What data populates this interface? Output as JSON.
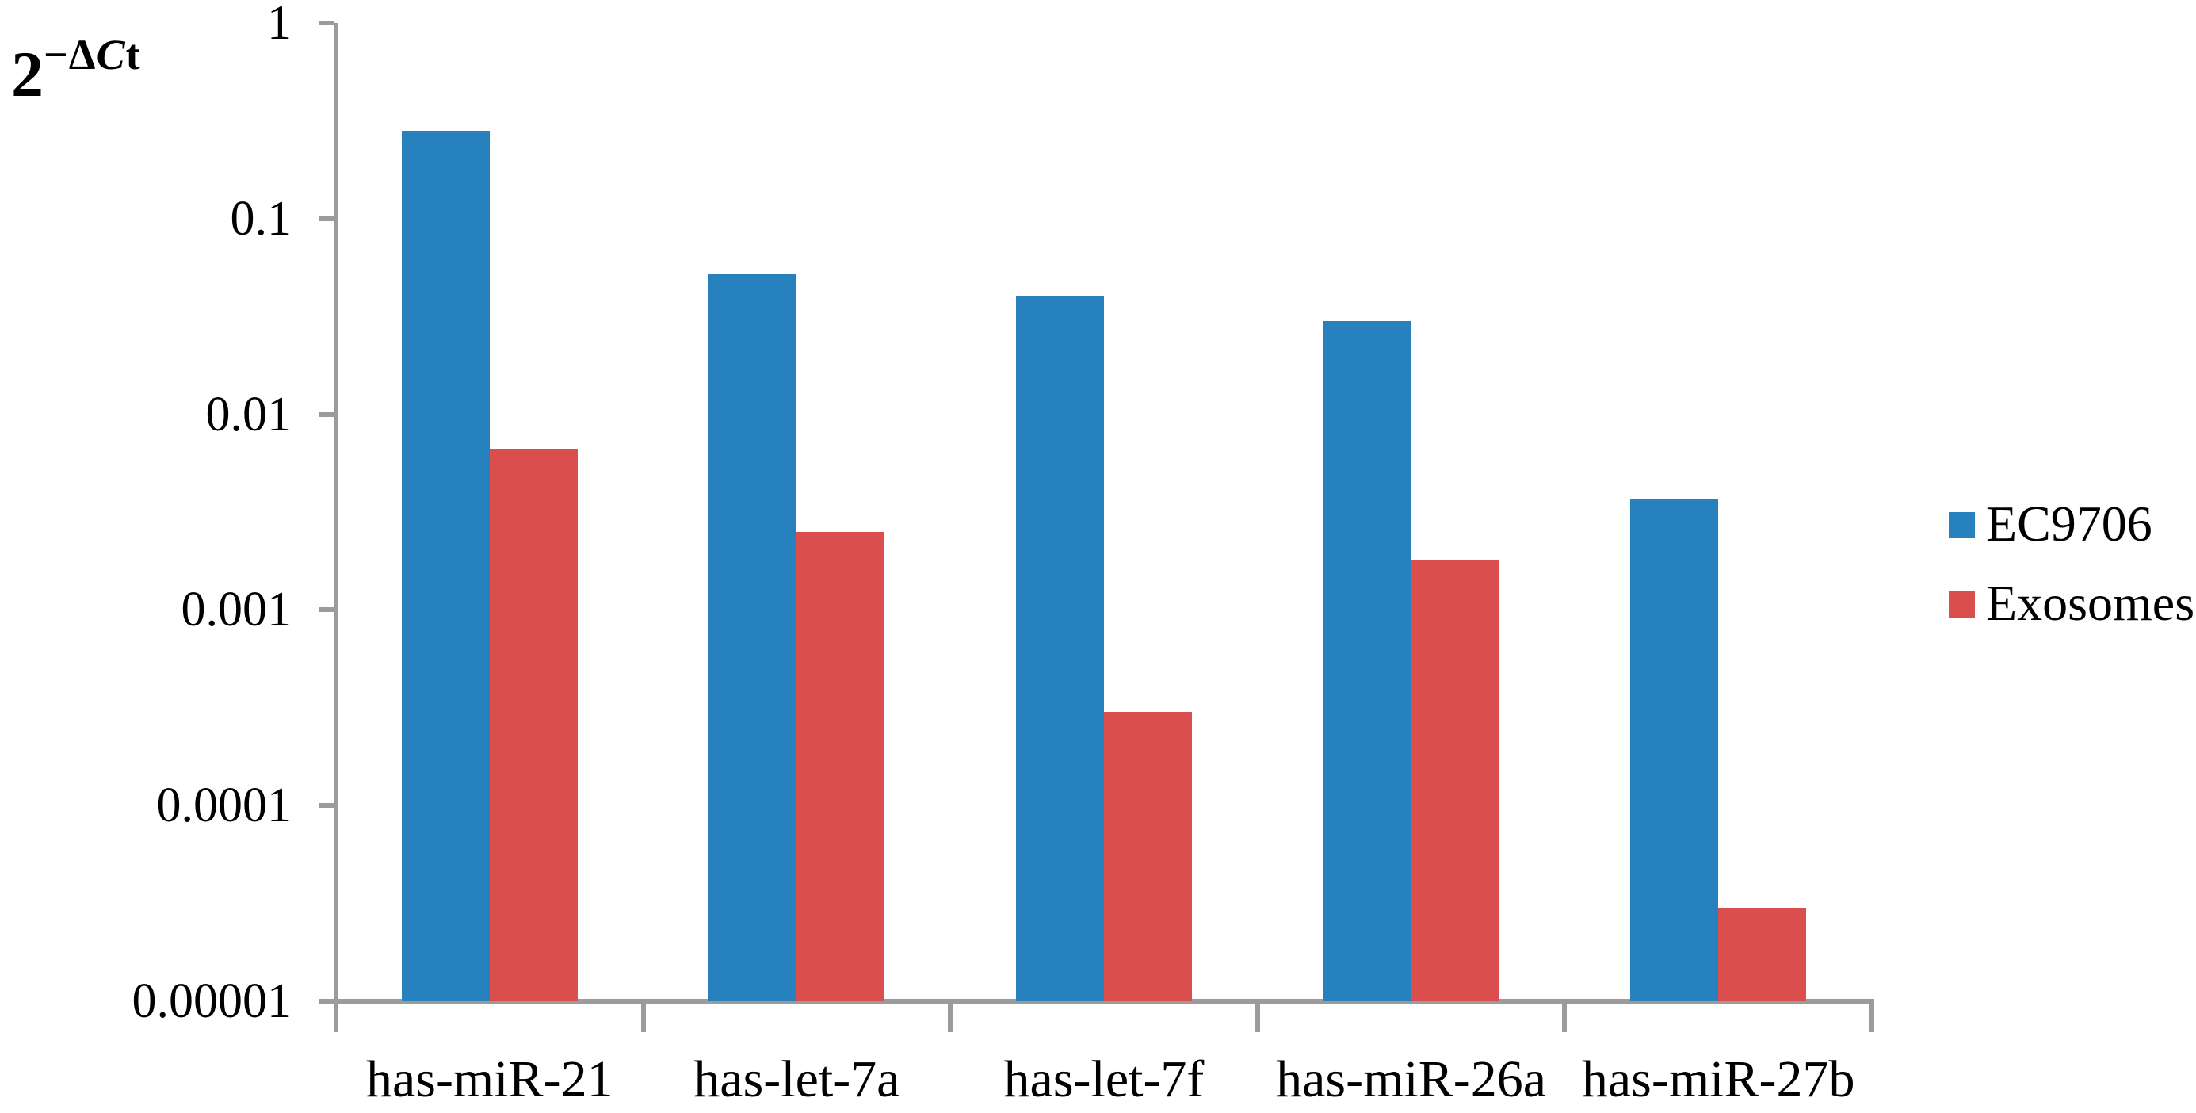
{
  "chart_data": {
    "type": "bar",
    "title": "",
    "categories": [
      "has-miR-21",
      "has-let-7a",
      "has-let-7f",
      "has-miR-26a",
      "has-miR-27b"
    ],
    "series": [
      {
        "name": "EC9706",
        "color": "#2681BE",
        "values": [
          0.28,
          0.052,
          0.04,
          0.03,
          0.0037
        ]
      },
      {
        "name": "Exosomes",
        "color": "#DB4E4E",
        "values": [
          0.0066,
          0.0025,
          0.0003,
          0.0018,
          3e-05
        ]
      }
    ],
    "y_axis": {
      "scale": "log",
      "min": 1e-05,
      "max": 1,
      "tick_values": [
        1,
        0.1,
        0.01,
        0.001,
        0.0001,
        1e-05
      ],
      "tick_labels": [
        "1",
        "0.1",
        "0.01",
        "0.001",
        "0.0001",
        "0.00001"
      ]
    },
    "y_axis_title": {
      "base": "2",
      "sup_prefix": "−Δ",
      "sup_italic": "C",
      "sup_suffix": "t"
    },
    "xlabel": "",
    "ylabel": "2^−ΔCt",
    "legend": {
      "position": "right",
      "entries": [
        "EC9706",
        "Exosomes"
      ]
    },
    "axis_color": "#9B9B9B",
    "grid": "off"
  }
}
